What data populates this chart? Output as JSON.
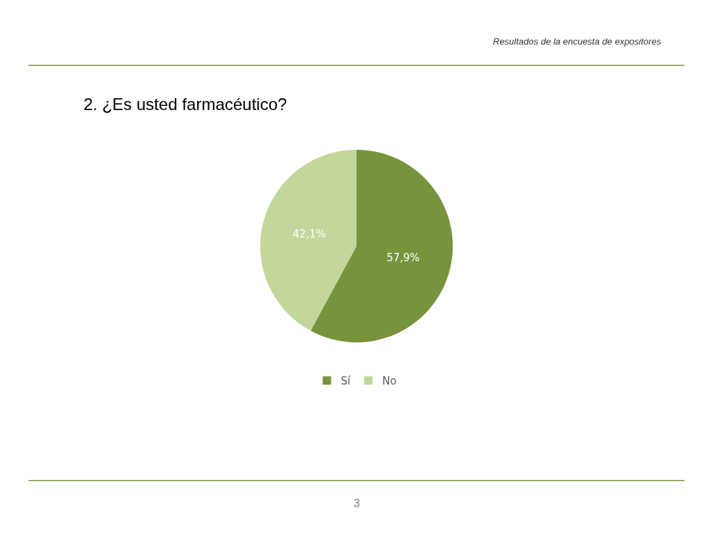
{
  "chart_data": {
    "type": "pie",
    "title": "2. ¿Es usted farmacéutico?",
    "subtitle": "Resultados de la encuesta de expositores",
    "categories": [
      "Sí",
      "No"
    ],
    "values": [
      57.9,
      42.1
    ],
    "colors": [
      "#77933c",
      "#c3d69b"
    ],
    "value_labels": [
      "57,9%",
      "42,1%"
    ],
    "legend": "bottom",
    "annotations": [
      "3"
    ]
  }
}
